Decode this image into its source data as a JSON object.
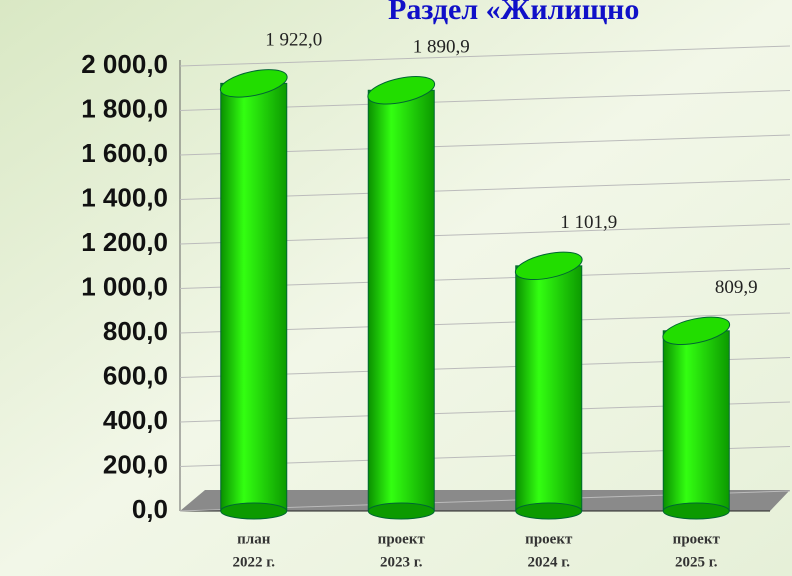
{
  "chart_data": {
    "type": "bar",
    "title": "Раздел «Жилищно",
    "categories": [
      [
        "план",
        "2022 г."
      ],
      [
        "проект",
        "2023 г."
      ],
      [
        "проект",
        "2024 г."
      ],
      [
        "проект",
        "2025 г."
      ]
    ],
    "values": [
      1922.0,
      1890.9,
      1101.9,
      809.9
    ],
    "value_labels": [
      "1 922,0",
      "1 890,9",
      "1 101,9",
      "809,9"
    ],
    "color": "#22ee00",
    "ylim": [
      0,
      2000
    ],
    "yticks": [
      {
        "value": 0,
        "label": "0,0"
      },
      {
        "value": 200,
        "label": "200,0"
      },
      {
        "value": 400,
        "label": "400,0"
      },
      {
        "value": 600,
        "label": "600,0"
      },
      {
        "value": 800,
        "label": "800,0"
      },
      {
        "value": 1000,
        "label": "1 000,0"
      },
      {
        "value": 1200,
        "label": "1 200,0"
      },
      {
        "value": 1400,
        "label": "1 400,0"
      },
      {
        "value": 1600,
        "label": "1 600,0"
      },
      {
        "value": 1800,
        "label": "1 800,0"
      },
      {
        "value": 2000,
        "label": "2 000,0"
      }
    ],
    "grid": true
  }
}
